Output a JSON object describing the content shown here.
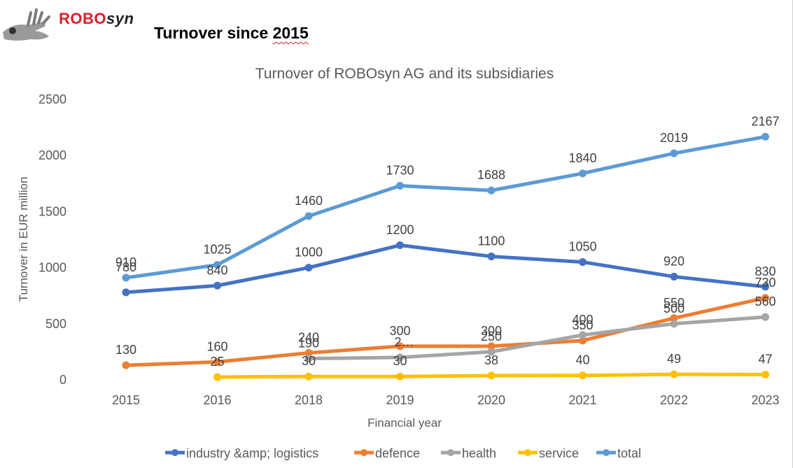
{
  "header": {
    "logo_text_red": "ROBO",
    "logo_text_dark": "syn",
    "page_title_prefix": "Turnover since ",
    "page_title_year": "2015"
  },
  "chart_data": {
    "type": "line",
    "title": "Turnover of ROBOsyn AG and its subsidiaries",
    "xlabel": "Financial year",
    "ylabel": "Turnover in EUR million",
    "ylim": [
      0,
      2500
    ],
    "yticks": [
      0,
      500,
      1000,
      1500,
      2000,
      2500
    ],
    "grid": false,
    "legend_position": "bottom",
    "categories": [
      "2015",
      "2016",
      "2018",
      "2019",
      "2020",
      "2021",
      "2022",
      "2023"
    ],
    "series": [
      {
        "name": "industry &amp; logistics",
        "color": "#4472c4",
        "values": [
          780,
          840,
          1000,
          1200,
          1100,
          1050,
          920,
          830
        ],
        "labels": [
          "780",
          "840",
          "1000",
          "1200",
          "1100",
          "1050",
          "920",
          "830"
        ]
      },
      {
        "name": "defence",
        "color": "#ed7d31",
        "values": [
          130,
          160,
          240,
          300,
          300,
          350,
          550,
          730
        ],
        "labels": [
          "130",
          "160",
          "240",
          "300",
          "300",
          "350",
          "550",
          "730"
        ]
      },
      {
        "name": "health",
        "color": "#a5a5a5",
        "values": [
          null,
          null,
          190,
          200,
          250,
          400,
          500,
          560
        ],
        "labels": [
          null,
          null,
          "190",
          "2…",
          "250",
          "400",
          "500",
          "560"
        ]
      },
      {
        "name": "service",
        "color": "#ffc000",
        "values": [
          null,
          25,
          30,
          30,
          38,
          40,
          49,
          47
        ],
        "labels": [
          null,
          "25",
          "30",
          "30",
          "38",
          "40",
          "49",
          "47"
        ]
      },
      {
        "name": "total",
        "color": "#5b9bd5",
        "values": [
          910,
          1025,
          1460,
          1730,
          1688,
          1840,
          2019,
          2167
        ],
        "labels": [
          "910",
          "1025",
          "1460",
          "1730",
          "1688",
          "1840",
          "2019",
          "2167"
        ]
      }
    ]
  }
}
